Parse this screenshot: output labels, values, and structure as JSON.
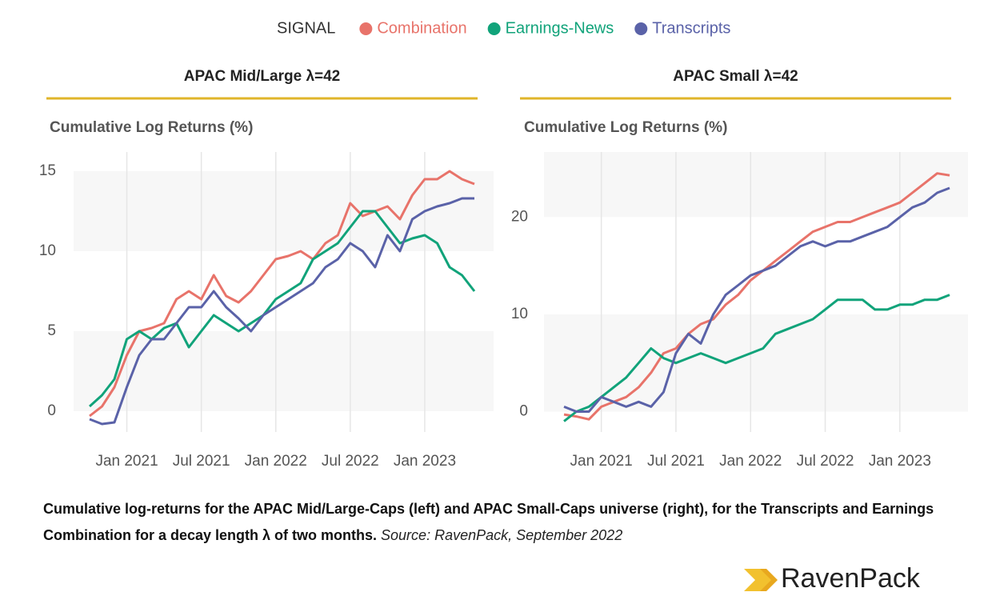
{
  "legend": {
    "title": "SIGNAL"
  },
  "chart_data": [
    {
      "type": "line",
      "title": "APAC Mid/Large λ=42",
      "ylabel": "Cumulative Log Returns (%)",
      "x": [
        "Oct 2020",
        "Nov 2020",
        "Dec 2020",
        "Jan 2021",
        "Feb 2021",
        "Mar 2021",
        "Apr 2021",
        "May 2021",
        "Jun 2021",
        "Jul 2021",
        "Aug 2021",
        "Sep 2021",
        "Oct 2021",
        "Nov 2021",
        "Dec 2021",
        "Jan 2022",
        "Feb 2022",
        "Mar 2022",
        "Apr 2022",
        "May 2022",
        "Jun 2022",
        "Jul 2022",
        "Aug 2022",
        "Sep 2022",
        "Oct 2022",
        "Nov 2022",
        "Dec 2022",
        "Jan 2023",
        "Feb 2023",
        "Mar 2023",
        "Apr 2023",
        "May 2023"
      ],
      "xticks": [
        "Jan 2021",
        "Jul 2021",
        "Jan 2022",
        "Jul 2022",
        "Jan 2023"
      ],
      "ylim": [
        -1.3,
        16.2
      ],
      "yticks": [
        0,
        5,
        10,
        15
      ],
      "series": [
        {
          "name": "Combination",
          "color": "#e8736a",
          "values": [
            -0.3,
            0.3,
            1.5,
            3.5,
            5,
            5.2,
            5.5,
            7,
            7.5,
            7,
            8.5,
            7.2,
            6.8,
            7.5,
            8.5,
            9.5,
            9.7,
            10,
            9.5,
            10.5,
            11,
            13,
            12.2,
            12.5,
            12.8,
            12,
            13.5,
            14.5,
            14.5,
            15,
            14.5,
            14.2
          ]
        },
        {
          "name": "Earnings-News",
          "color": "#11a37a",
          "values": [
            0.3,
            1,
            2,
            4.5,
            5,
            4.5,
            5.2,
            5.5,
            4,
            5,
            6,
            5.5,
            5,
            5.5,
            6,
            7,
            7.5,
            8,
            9.5,
            10,
            10.5,
            11.5,
            12.5,
            12.5,
            11.5,
            10.5,
            10.8,
            11,
            10.5,
            9,
            8.5,
            7.5
          ]
        },
        {
          "name": "Transcripts",
          "color": "#5a62a8",
          "values": [
            -0.5,
            -0.8,
            -0.7,
            1.5,
            3.5,
            4.5,
            4.5,
            5.5,
            6.5,
            6.5,
            7.5,
            6.5,
            5.8,
            5,
            6,
            6.5,
            7,
            7.5,
            8,
            9,
            9.5,
            10.5,
            10,
            9,
            11,
            10,
            12,
            12.5,
            12.8,
            13,
            13.3,
            13.3
          ]
        }
      ]
    },
    {
      "type": "line",
      "title": "APAC Small λ=42",
      "ylabel": "Cumulative Log Returns (%)",
      "x": [
        "Oct 2020",
        "Nov 2020",
        "Dec 2020",
        "Jan 2021",
        "Feb 2021",
        "Mar 2021",
        "Apr 2021",
        "May 2021",
        "Jun 2021",
        "Jul 2021",
        "Aug 2021",
        "Sep 2021",
        "Oct 2021",
        "Nov 2021",
        "Dec 2021",
        "Jan 2022",
        "Feb 2022",
        "Mar 2022",
        "Apr 2022",
        "May 2022",
        "Jun 2022",
        "Jul 2022",
        "Aug 2022",
        "Sep 2022",
        "Oct 2022",
        "Nov 2022",
        "Dec 2022",
        "Jan 2023",
        "Feb 2023",
        "Mar 2023",
        "Apr 2023",
        "May 2023"
      ],
      "xticks": [
        "Jan 2021",
        "Jul 2021",
        "Jan 2022",
        "Jul 2022",
        "Jan 2023"
      ],
      "ylim": [
        -2.1,
        26.7
      ],
      "yticks": [
        0,
        10,
        20
      ],
      "series": [
        {
          "name": "Combination",
          "color": "#e8736a",
          "values": [
            -0.3,
            -0.5,
            -0.8,
            0.5,
            1,
            1.5,
            2.5,
            4,
            6,
            6.5,
            8,
            9,
            9.5,
            11,
            12,
            13.5,
            14.5,
            15.5,
            16.5,
            17.5,
            18.5,
            19,
            19.5,
            19.5,
            20,
            20.5,
            21,
            21.5,
            22.5,
            23.5,
            24.5,
            24.3
          ]
        },
        {
          "name": "Earnings-News",
          "color": "#11a37a",
          "values": [
            -1,
            0,
            0.5,
            1.5,
            2.5,
            3.5,
            5,
            6.5,
            5.5,
            5,
            5.5,
            6,
            5.5,
            5,
            5.5,
            6,
            6.5,
            8,
            8.5,
            9,
            9.5,
            10.5,
            11.5,
            11.5,
            11.5,
            10.5,
            10.5,
            11,
            11,
            11.5,
            11.5,
            12
          ]
        },
        {
          "name": "Transcripts",
          "color": "#5a62a8",
          "values": [
            0.5,
            0,
            0,
            1.5,
            1,
            0.5,
            1,
            0.5,
            2,
            6,
            8,
            7,
            10,
            12,
            13,
            14,
            14.5,
            15,
            16,
            17,
            17.5,
            17,
            17.5,
            17.5,
            18,
            18.5,
            19,
            20,
            21,
            21.5,
            22.5,
            23
          ]
        }
      ]
    }
  ],
  "caption": {
    "text": "Cumulative log-returns for the APAC Mid/Large-Caps (left) and APAC Small-Caps universe (right), for the Transcripts and Earnings Combination for a decay length λ of two months.",
    "source": "Source: RavenPack, September 2022"
  },
  "logo": "RavenPack"
}
